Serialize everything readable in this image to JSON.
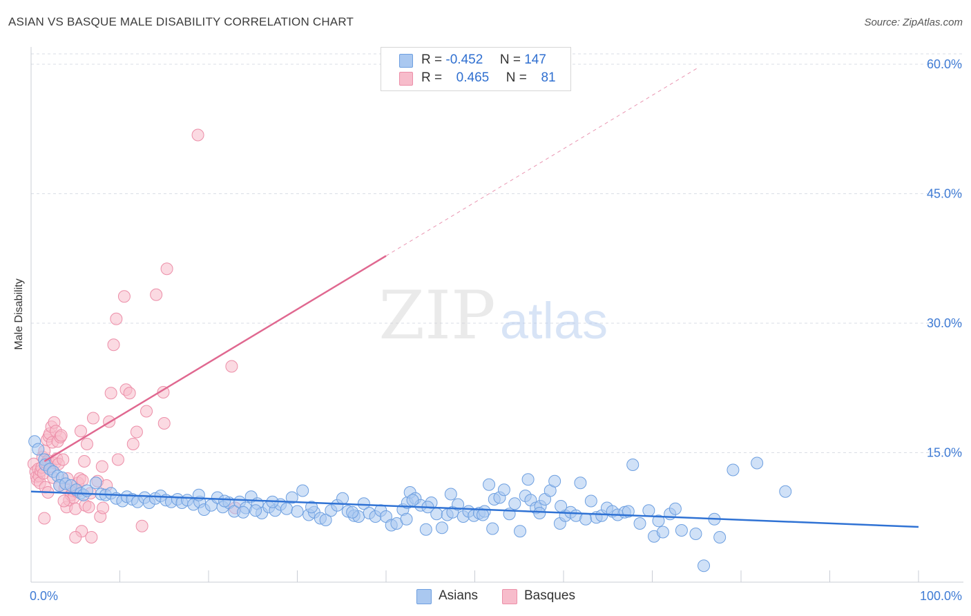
{
  "header": {
    "title": "ASIAN VS BASQUE MALE DISABILITY CORRELATION CHART",
    "source": "Source: ZipAtlas.com"
  },
  "watermark": {
    "zip": "ZIP",
    "atlas": "atlas"
  },
  "colors": {
    "asian_fill": "#aac8f0",
    "asian_stroke": "#6d9fe0",
    "asian_line": "#2f72d4",
    "basque_fill": "#f7bccb",
    "basque_stroke": "#ec8ea8",
    "basque_line": "#e06890",
    "axis_text": "#3f7bd4",
    "grid": "#d9dde5"
  },
  "legend": {
    "asian": {
      "r_label": "R =",
      "r_value": "-0.452",
      "n_label": "N =",
      "n_value": "147"
    },
    "basque": {
      "r_label": "R =",
      "r_value": "0.465",
      "n_label": "N =",
      "n_value": "81"
    }
  },
  "bottom_legend": {
    "asian": "Asians",
    "basque": "Basques"
  },
  "chart_data": {
    "type": "scatter",
    "xlabel": "",
    "ylabel": "Male Disability",
    "xlim": [
      0,
      100
    ],
    "ylim": [
      0,
      62
    ],
    "x_tick_labels": [
      "0.0%",
      "100.0%"
    ],
    "y_ticks": [
      15,
      30,
      45,
      60
    ],
    "y_tick_labels": [
      "15.0%",
      "30.0%",
      "45.0%",
      "60.0%"
    ],
    "grid": "horizontal dashed",
    "legend_position": "top-center",
    "series": [
      {
        "name": "Asians",
        "r": -0.452,
        "n": 147,
        "trend": {
          "x": [
            0,
            100
          ],
          "y": [
            10.5,
            6.4
          ]
        },
        "points": [
          [
            0.4,
            16.3
          ],
          [
            0.8,
            15.4
          ],
          [
            1.5,
            14.2
          ],
          [
            1.6,
            13.6
          ],
          [
            2.1,
            13.1
          ],
          [
            2.5,
            12.8
          ],
          [
            3.0,
            12.3
          ],
          [
            3.5,
            12.1
          ],
          [
            3.2,
            11.2
          ],
          [
            3.9,
            11.4
          ],
          [
            4.5,
            11.2
          ],
          [
            5.1,
            10.7
          ],
          [
            5.6,
            10.3
          ],
          [
            5.9,
            10.1
          ],
          [
            6.3,
            10.6
          ],
          [
            7.3,
            11.5
          ],
          [
            7.9,
            10.2
          ],
          [
            8.4,
            10.1
          ],
          [
            9.0,
            10.3
          ],
          [
            9.6,
            9.7
          ],
          [
            10.3,
            9.4
          ],
          [
            10.8,
            9.9
          ],
          [
            11.4,
            9.6
          ],
          [
            12.0,
            9.3
          ],
          [
            12.8,
            9.8
          ],
          [
            13.3,
            9.2
          ],
          [
            14.0,
            9.7
          ],
          [
            14.6,
            10.0
          ],
          [
            15.2,
            9.5
          ],
          [
            15.8,
            9.3
          ],
          [
            16.5,
            9.6
          ],
          [
            17.0,
            9.2
          ],
          [
            17.6,
            9.5
          ],
          [
            18.3,
            9.0
          ],
          [
            19.0,
            9.3
          ],
          [
            19.5,
            8.4
          ],
          [
            20.3,
            8.9
          ],
          [
            21.0,
            9.8
          ],
          [
            21.6,
            8.7
          ],
          [
            22.3,
            9.2
          ],
          [
            22.9,
            8.2
          ],
          [
            23.5,
            9.3
          ],
          [
            24.2,
            8.6
          ],
          [
            24.8,
            9.9
          ],
          [
            25.5,
            9.1
          ],
          [
            26.0,
            8.0
          ],
          [
            26.8,
            8.7
          ],
          [
            27.5,
            8.3
          ],
          [
            28.1,
            9.0
          ],
          [
            28.8,
            8.5
          ],
          [
            29.4,
            9.8
          ],
          [
            30.0,
            8.2
          ],
          [
            30.6,
            10.6
          ],
          [
            31.3,
            7.8
          ],
          [
            31.9,
            8.1
          ],
          [
            32.6,
            7.4
          ],
          [
            33.2,
            7.2
          ],
          [
            33.8,
            8.3
          ],
          [
            34.5,
            8.9
          ],
          [
            35.1,
            9.7
          ],
          [
            35.7,
            8.2
          ],
          [
            36.4,
            7.7
          ],
          [
            36.9,
            7.6
          ],
          [
            37.5,
            9.1
          ],
          [
            38.1,
            8.0
          ],
          [
            38.8,
            7.6
          ],
          [
            39.4,
            8.3
          ],
          [
            40.0,
            7.6
          ],
          [
            40.6,
            6.6
          ],
          [
            41.2,
            6.8
          ],
          [
            41.9,
            8.4
          ],
          [
            42.4,
            9.2
          ],
          [
            42.7,
            10.4
          ],
          [
            43.3,
            9.7
          ],
          [
            43.9,
            8.9
          ],
          [
            44.5,
            6.1
          ],
          [
            45.1,
            9.2
          ],
          [
            45.7,
            7.9
          ],
          [
            46.3,
            6.3
          ],
          [
            46.9,
            7.8
          ],
          [
            47.5,
            8.1
          ],
          [
            48.1,
            9.0
          ],
          [
            48.7,
            7.6
          ],
          [
            49.3,
            8.2
          ],
          [
            49.9,
            7.7
          ],
          [
            50.5,
            8.0
          ],
          [
            51.1,
            8.2
          ],
          [
            51.6,
            11.3
          ],
          [
            52.2,
            9.6
          ],
          [
            52.8,
            9.8
          ],
          [
            53.3,
            10.7
          ],
          [
            53.9,
            7.9
          ],
          [
            54.5,
            9.1
          ],
          [
            55.1,
            5.9
          ],
          [
            55.7,
            10.0
          ],
          [
            56.3,
            9.5
          ],
          [
            56.9,
            8.6
          ],
          [
            57.4,
            8.8
          ],
          [
            57.9,
            9.6
          ],
          [
            58.5,
            10.6
          ],
          [
            59.0,
            11.7
          ],
          [
            59.6,
            6.8
          ],
          [
            60.2,
            7.7
          ],
          [
            60.8,
            8.1
          ],
          [
            61.4,
            7.7
          ],
          [
            61.9,
            11.5
          ],
          [
            62.5,
            7.3
          ],
          [
            63.1,
            9.4
          ],
          [
            63.7,
            7.5
          ],
          [
            64.3,
            7.7
          ],
          [
            64.9,
            8.6
          ],
          [
            65.5,
            8.2
          ],
          [
            66.1,
            7.8
          ],
          [
            66.9,
            8.1
          ],
          [
            67.3,
            8.2
          ],
          [
            67.8,
            13.6
          ],
          [
            68.6,
            6.8
          ],
          [
            69.6,
            8.3
          ],
          [
            70.2,
            5.3
          ],
          [
            70.7,
            7.1
          ],
          [
            71.2,
            5.8
          ],
          [
            72.0,
            7.9
          ],
          [
            72.6,
            8.5
          ],
          [
            73.3,
            6.0
          ],
          [
            74.9,
            5.6
          ],
          [
            75.8,
            1.9
          ],
          [
            77.0,
            7.3
          ],
          [
            77.6,
            5.2
          ],
          [
            79.1,
            13.0
          ],
          [
            81.8,
            13.8
          ],
          [
            85.0,
            10.5
          ],
          [
            52.0,
            6.2
          ],
          [
            59.7,
            8.8
          ],
          [
            42.3,
            7.3
          ],
          [
            36.2,
            8.1
          ],
          [
            47.3,
            10.2
          ],
          [
            50.9,
            7.8
          ],
          [
            31.6,
            8.7
          ],
          [
            44.7,
            8.7
          ],
          [
            43.0,
            9.5
          ],
          [
            27.2,
            9.3
          ],
          [
            25.3,
            8.3
          ],
          [
            18.9,
            10.1
          ],
          [
            21.8,
            9.4
          ],
          [
            23.9,
            8.1
          ],
          [
            56.0,
            11.9
          ],
          [
            57.3,
            8.0
          ]
        ]
      },
      {
        "name": "Basques",
        "r": 0.465,
        "n": 81,
        "trend": {
          "x": [
            1.5,
            40.0
          ],
          "y": [
            14.0,
            37.8
          ]
        },
        "trend_extension": {
          "x": [
            40.0,
            75.0
          ],
          "y": [
            37.8,
            59.5
          ]
        },
        "points": [
          [
            0.3,
            13.7
          ],
          [
            0.5,
            12.8
          ],
          [
            0.6,
            12.2
          ],
          [
            0.7,
            11.8
          ],
          [
            0.8,
            13.1
          ],
          [
            0.9,
            12.3
          ],
          [
            1.0,
            11.5
          ],
          [
            1.1,
            12.9
          ],
          [
            1.2,
            13.3
          ],
          [
            1.3,
            14.5
          ],
          [
            1.4,
            12.6
          ],
          [
            1.5,
            15.2
          ],
          [
            1.6,
            11.0
          ],
          [
            1.7,
            13.8
          ],
          [
            1.8,
            16.5
          ],
          [
            1.9,
            14.1
          ],
          [
            2.0,
            16.9
          ],
          [
            2.1,
            17.2
          ],
          [
            2.2,
            13.4
          ],
          [
            2.3,
            18.0
          ],
          [
            2.4,
            16.2
          ],
          [
            2.5,
            12.1
          ],
          [
            2.6,
            18.5
          ],
          [
            2.7,
            13.8
          ],
          [
            2.8,
            17.5
          ],
          [
            2.9,
            14.3
          ],
          [
            3.0,
            16.3
          ],
          [
            3.1,
            13.7
          ],
          [
            3.2,
            11.2
          ],
          [
            3.3,
            16.8
          ],
          [
            3.4,
            17.0
          ],
          [
            3.6,
            14.2
          ],
          [
            3.8,
            10.9
          ],
          [
            4.0,
            8.7
          ],
          [
            4.1,
            12.0
          ],
          [
            4.3,
            9.5
          ],
          [
            4.5,
            10.1
          ],
          [
            4.7,
            10.6
          ],
          [
            4.8,
            9.8
          ],
          [
            5.0,
            8.5
          ],
          [
            5.2,
            10.5
          ],
          [
            5.3,
            11.5
          ],
          [
            5.5,
            12.0
          ],
          [
            5.6,
            17.5
          ],
          [
            5.8,
            11.8
          ],
          [
            6.1,
            8.9
          ],
          [
            6.3,
            16.0
          ],
          [
            5.7,
            5.9
          ],
          [
            6.5,
            8.7
          ],
          [
            6.7,
            10.3
          ],
          [
            7.0,
            19.0
          ],
          [
            7.5,
            11.7
          ],
          [
            7.8,
            7.6
          ],
          [
            8.1,
            8.6
          ],
          [
            8.5,
            11.2
          ],
          [
            8.0,
            13.4
          ],
          [
            9.0,
            21.9
          ],
          [
            9.3,
            27.5
          ],
          [
            9.6,
            30.5
          ],
          [
            10.5,
            33.1
          ],
          [
            10.7,
            22.3
          ],
          [
            11.1,
            21.9
          ],
          [
            11.5,
            16.0
          ],
          [
            11.9,
            17.4
          ],
          [
            12.5,
            6.5
          ],
          [
            13.0,
            19.8
          ],
          [
            14.1,
            33.3
          ],
          [
            15.3,
            36.3
          ],
          [
            18.8,
            51.8
          ],
          [
            14.9,
            22.0
          ],
          [
            15.0,
            18.4
          ],
          [
            22.6,
            25.0
          ],
          [
            23.0,
            8.6
          ],
          [
            5.0,
            5.2
          ],
          [
            6.8,
            5.2
          ],
          [
            1.9,
            10.4
          ],
          [
            1.5,
            7.4
          ],
          [
            3.7,
            9.4
          ],
          [
            8.8,
            18.6
          ],
          [
            9.8,
            14.2
          ],
          [
            6.0,
            14.0
          ]
        ]
      }
    ]
  }
}
